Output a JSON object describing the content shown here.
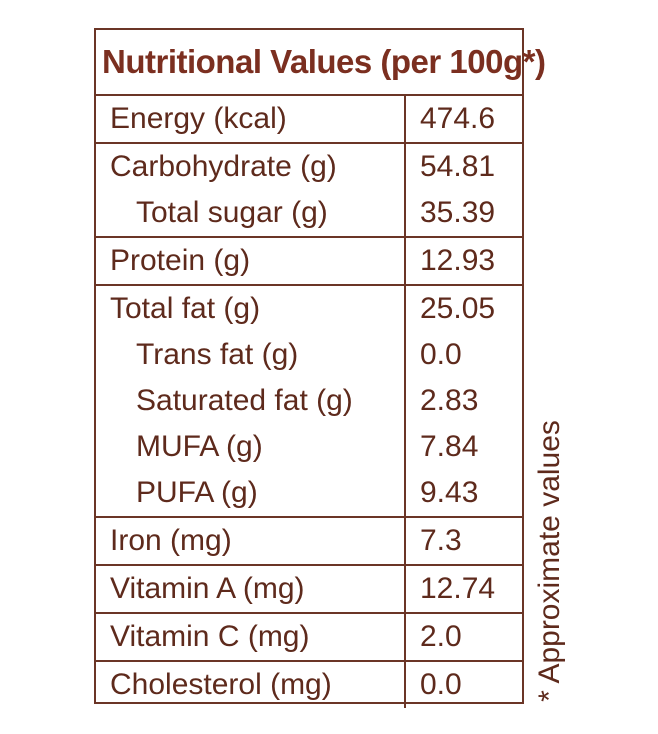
{
  "table": {
    "title": "Nutritional Values (per 100g*)",
    "groups": [
      {
        "rows": [
          {
            "name": "Energy (kcal)",
            "value": "474.6"
          }
        ]
      },
      {
        "rows": [
          {
            "name": "Carbohydrate (g)",
            "value": "54.81"
          },
          {
            "name": "Total sugar (g)",
            "value": "35.39"
          }
        ]
      },
      {
        "rows": [
          {
            "name": "Protein (g)",
            "value": "12.93"
          }
        ]
      },
      {
        "rows": [
          {
            "name": "Total fat (g)",
            "value": "25.05"
          },
          {
            "name": "Trans fat (g)",
            "value": "0.0"
          },
          {
            "name": "Saturated fat (g)",
            "value": "2.83"
          },
          {
            "name": "MUFA (g)",
            "value": "7.84"
          },
          {
            "name": "PUFA (g)",
            "value": "9.43"
          }
        ]
      },
      {
        "rows": [
          {
            "name": "Iron (mg)",
            "value": "7.3"
          }
        ]
      },
      {
        "rows": [
          {
            "name": "Vitamin A (mg)",
            "value": "12.74"
          }
        ]
      },
      {
        "rows": [
          {
            "name": "Vitamin C (mg)",
            "value": "2.0"
          }
        ]
      },
      {
        "rows": [
          {
            "name": "Cholesterol (mg)",
            "value": "0.0"
          }
        ]
      }
    ]
  },
  "footnote": "* Approximate values",
  "colors": {
    "border": "#6b3526",
    "title_text": "#7b2f20",
    "body_text": "#5e2a1c",
    "background": "#ffffff"
  }
}
